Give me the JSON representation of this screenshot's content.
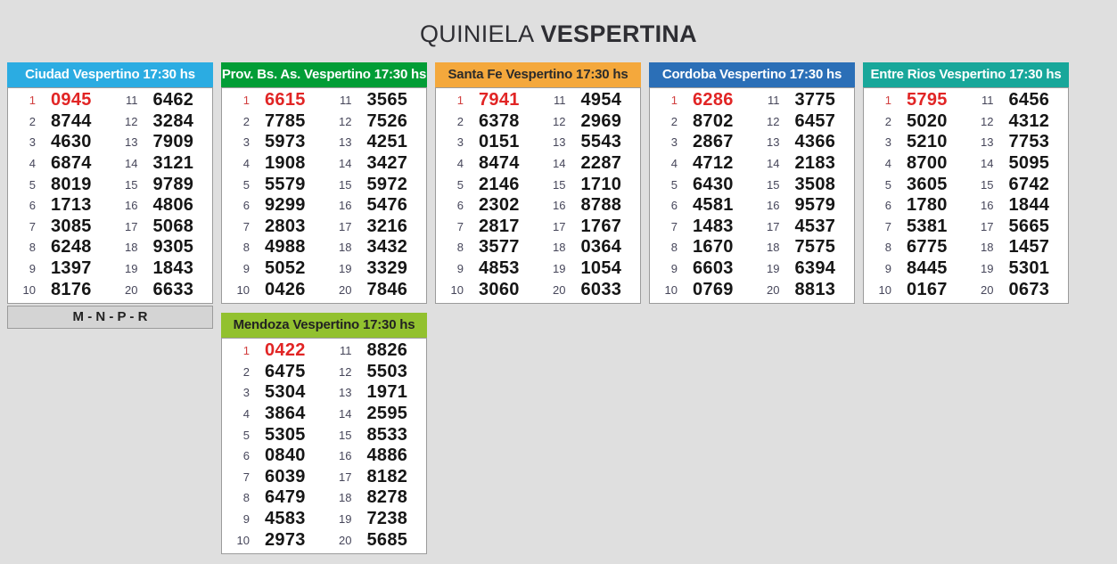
{
  "title": {
    "regular": "QUINIELA",
    "bold": "VESPERTINA"
  },
  "colors": {
    "highlight_red": "#e12525",
    "page_background": "#dfdfdf"
  },
  "positions": [
    "1",
    "2",
    "3",
    "4",
    "5",
    "6",
    "7",
    "8",
    "9",
    "10",
    "11",
    "12",
    "13",
    "14",
    "15",
    "16",
    "17",
    "18",
    "19",
    "20"
  ],
  "boards": [
    {
      "title": "Ciudad Vespertino 17:30 hs",
      "header_bg": "#2bace2",
      "header_fg": "#ffffff",
      "numbers": [
        "0945",
        "8744",
        "4630",
        "6874",
        "8019",
        "1713",
        "3085",
        "6248",
        "1397",
        "8176",
        "6462",
        "3284",
        "7909",
        "3121",
        "9789",
        "4806",
        "5068",
        "9305",
        "1843",
        "6633"
      ],
      "footer": "M - N - P - R"
    },
    {
      "title": "Prov. Bs. As. Vespertino 17:30 hs",
      "header_bg": "#029d36",
      "header_fg": "#ffffff",
      "numbers": [
        "6615",
        "7785",
        "5973",
        "1908",
        "5579",
        "9299",
        "2803",
        "4988",
        "5052",
        "0426",
        "3565",
        "7526",
        "4251",
        "3427",
        "5972",
        "5476",
        "3216",
        "3432",
        "3329",
        "7846"
      ]
    },
    {
      "title": "Santa Fe Vespertino 17:30 hs",
      "header_bg": "#f4a83c",
      "header_fg": "#2b2b2b",
      "numbers": [
        "7941",
        "6378",
        "0151",
        "8474",
        "2146",
        "2302",
        "2817",
        "3577",
        "4853",
        "3060",
        "4954",
        "2969",
        "5543",
        "2287",
        "1710",
        "8788",
        "1767",
        "0364",
        "1054",
        "6033"
      ]
    },
    {
      "title": "Cordoba Vespertino 17:30 hs",
      "header_bg": "#2b6fb7",
      "header_fg": "#ffffff",
      "numbers": [
        "6286",
        "8702",
        "2867",
        "4712",
        "6430",
        "4581",
        "1483",
        "1670",
        "6603",
        "0769",
        "3775",
        "6457",
        "4366",
        "2183",
        "3508",
        "9579",
        "4537",
        "7575",
        "6394",
        "8813"
      ]
    },
    {
      "title": "Entre Rios Vespertino 17:30 hs",
      "header_bg": "#18a79a",
      "header_fg": "#ffffff",
      "numbers": [
        "5795",
        "5020",
        "5210",
        "8700",
        "3605",
        "1780",
        "5381",
        "6775",
        "8445",
        "0167",
        "6456",
        "4312",
        "7753",
        "5095",
        "6742",
        "1844",
        "5665",
        "1457",
        "5301",
        "0673"
      ]
    },
    {
      "title": "Mendoza Vespertino 17:30 hs",
      "header_bg": "#92c12f",
      "header_fg": "#222222",
      "numbers": [
        "0422",
        "6475",
        "5304",
        "3864",
        "5305",
        "0840",
        "6039",
        "6479",
        "4583",
        "2973",
        "8826",
        "5503",
        "1971",
        "2595",
        "8533",
        "4886",
        "8182",
        "8278",
        "7238",
        "5685"
      ]
    }
  ]
}
